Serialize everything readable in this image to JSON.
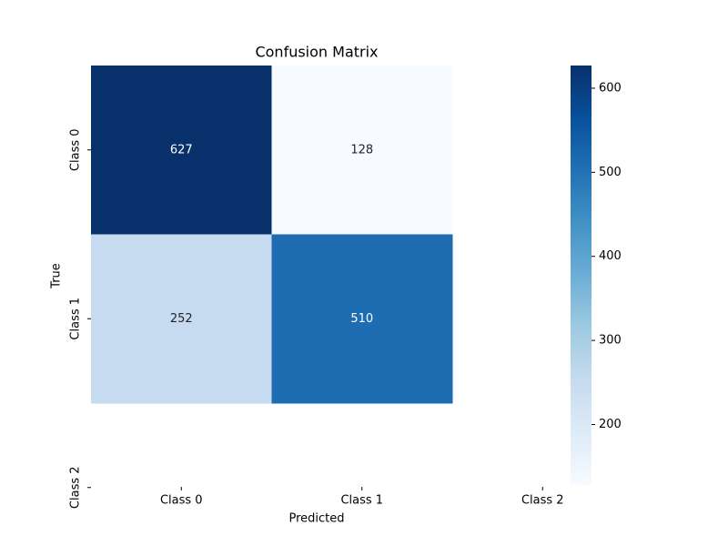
{
  "chart_data": {
    "type": "heatmap",
    "title": "Confusion Matrix",
    "x_label": "Predicted",
    "y_label": "True",
    "x_categories": [
      "Class 0",
      "Class 1",
      "Class 2"
    ],
    "y_categories": [
      "Class 0",
      "Class 1",
      "Class 2"
    ],
    "values": [
      [
        627,
        128,
        null
      ],
      [
        252,
        510,
        null
      ],
      [
        null,
        null,
        null
      ]
    ],
    "colormap": "Blues",
    "clim": [
      128,
      627
    ],
    "colorbar_ticks": [
      200,
      300,
      400,
      500,
      600
    ]
  }
}
